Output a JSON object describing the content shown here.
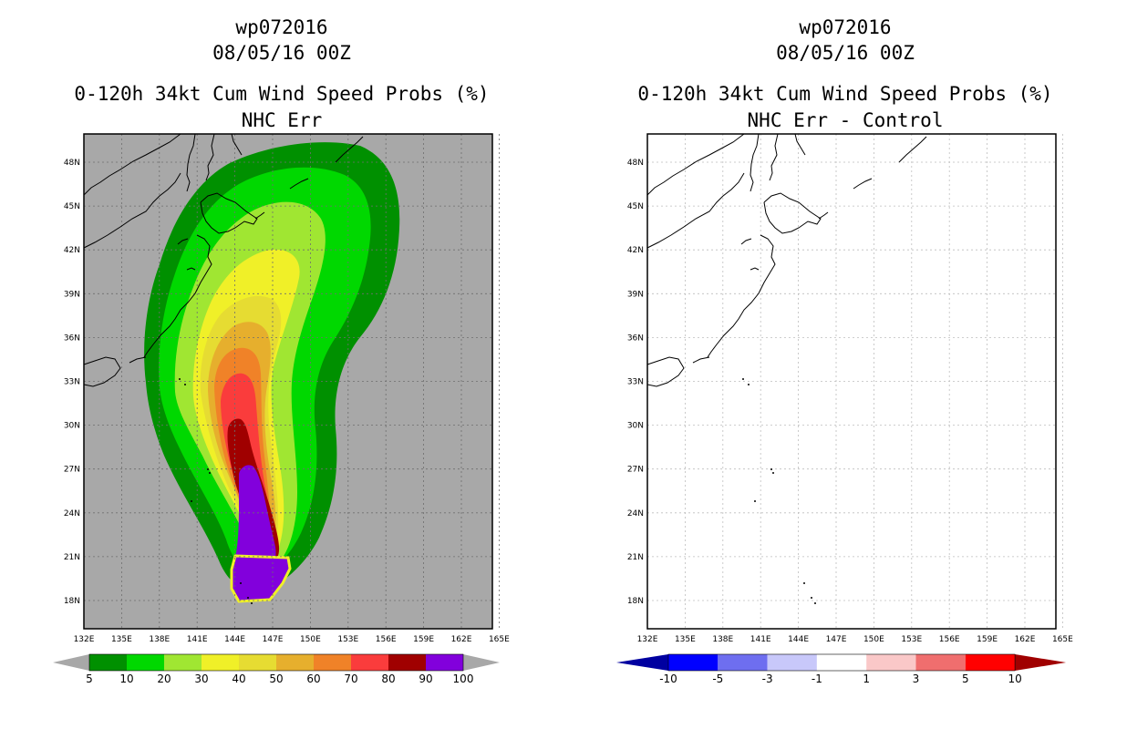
{
  "left_panel": {
    "storm_id": "wp072016",
    "datetime": "08/05/16 00Z",
    "product": "0-120h 34kt Cum Wind Speed Probs (%)",
    "subtitle": "NHC Err",
    "background_color": "#a8a8a8",
    "colorbar": {
      "labels": [
        "5",
        "10",
        "20",
        "30",
        "40",
        "50",
        "60",
        "70",
        "80",
        "90",
        "100"
      ],
      "colors": [
        "#009000",
        "#00d800",
        "#a0e632",
        "#f0f028",
        "#e6dc32",
        "#e6af2d",
        "#f08228",
        "#fa3c3c",
        "#a00000",
        "#8200dc"
      ],
      "under_color": "#a8a8a8",
      "over_color": "#a8a8a8"
    }
  },
  "right_panel": {
    "storm_id": "wp072016",
    "datetime": "08/05/16 00Z",
    "product": "0-120h 34kt Cum Wind Speed Probs (%)",
    "subtitle": "NHC Err - Control",
    "background_color": "#ffffff",
    "colorbar": {
      "labels": [
        "-10",
        "-5",
        "-3",
        "-1",
        "1",
        "3",
        "5",
        "10"
      ],
      "colors": [
        "#0000ff",
        "#6e6ef0",
        "#c8c8fa",
        "#ffffff",
        "#fac8c8",
        "#f06e6e",
        "#ff0000"
      ],
      "under_color": "#0000a0",
      "over_color": "#a00000"
    }
  },
  "map": {
    "lon_labels": [
      "132E",
      "135E",
      "138E",
      "141E",
      "144E",
      "147E",
      "150E",
      "153E",
      "156E",
      "159E",
      "162E",
      "165E"
    ],
    "lat_labels": [
      "18N",
      "21N",
      "24N",
      "27N",
      "30N",
      "33N",
      "36N",
      "39N",
      "42N",
      "45N",
      "48N"
    ]
  }
}
